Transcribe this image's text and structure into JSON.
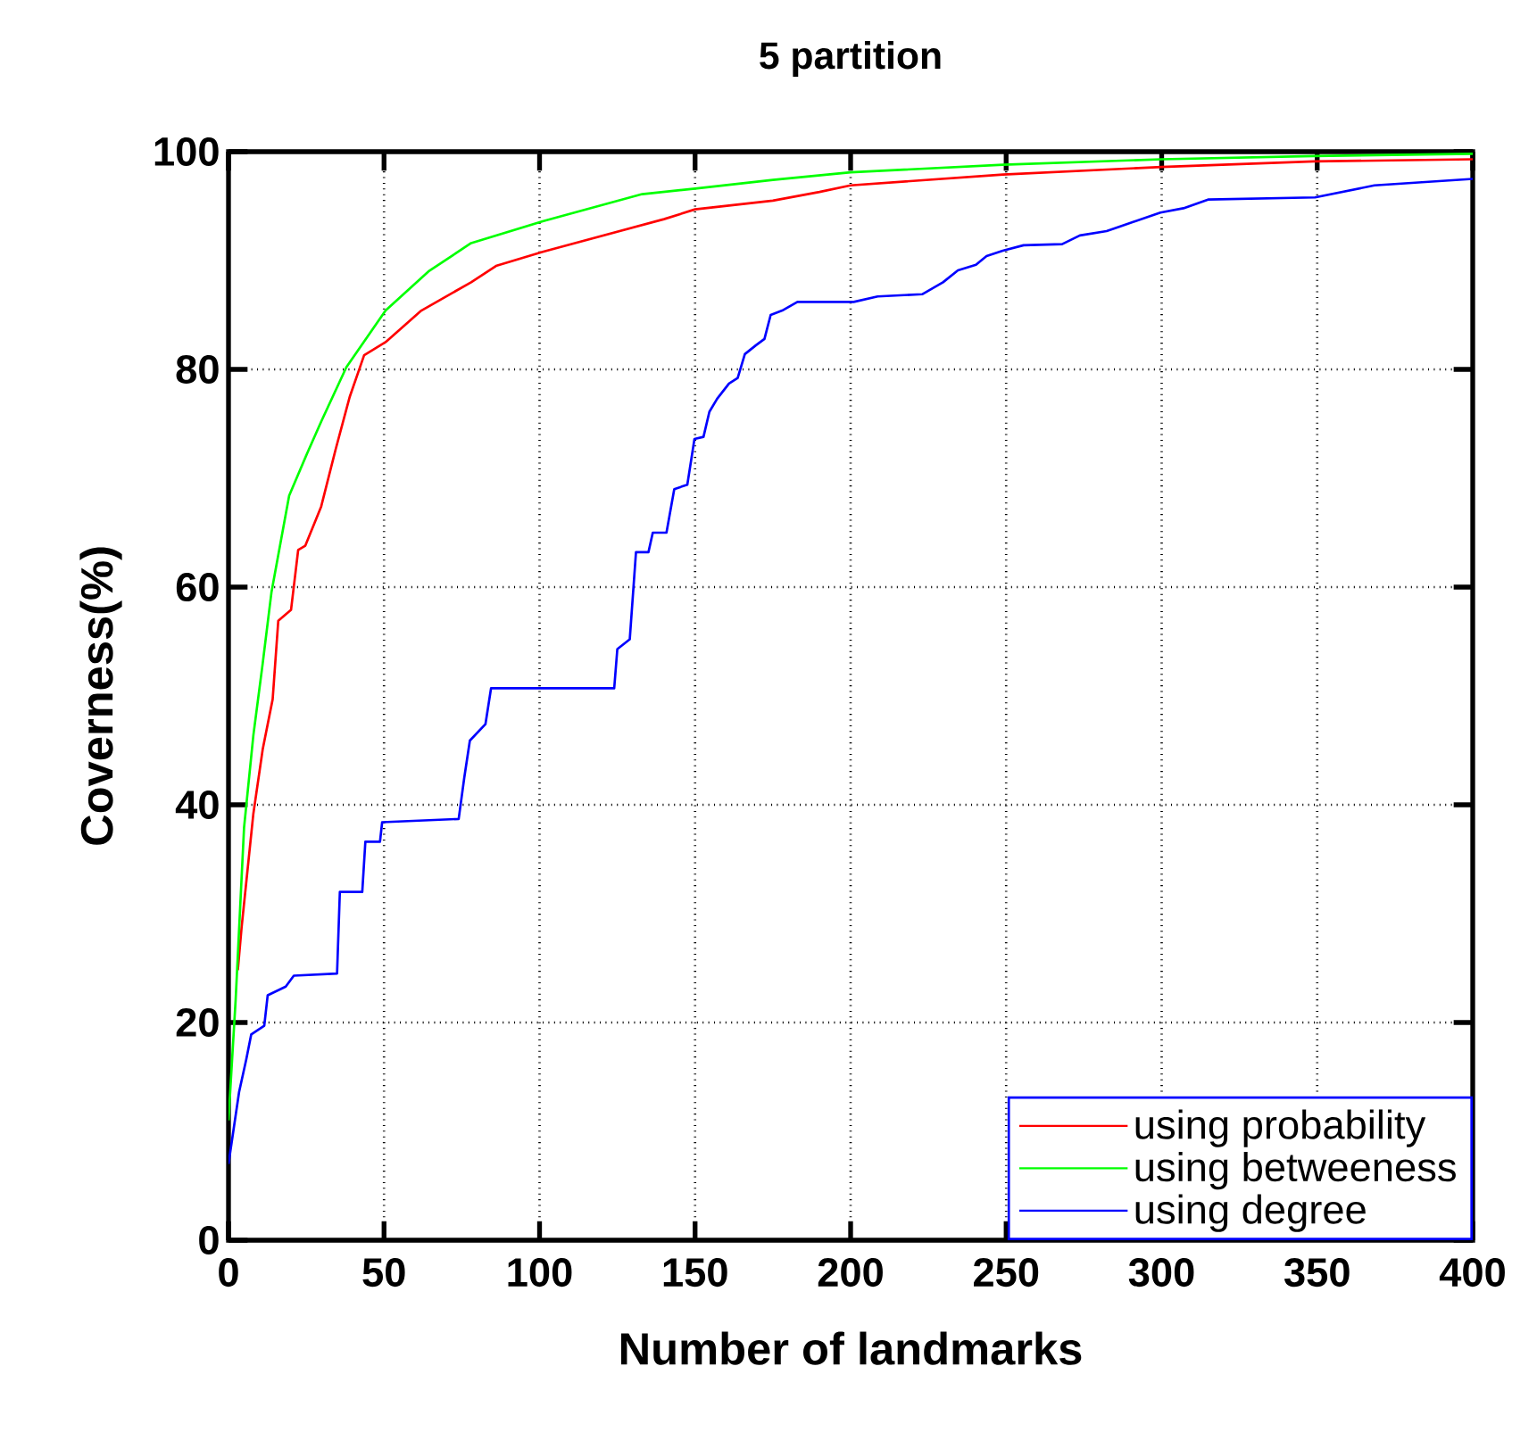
{
  "chart_data": {
    "type": "line",
    "title": "5 partition",
    "xlabel": "Number of landmarks",
    "ylabel": "Coverness(%)",
    "xlim": [
      0,
      400
    ],
    "ylim": [
      0,
      100
    ],
    "xticks": [
      0,
      50,
      100,
      150,
      200,
      250,
      300,
      350,
      400
    ],
    "yticks": [
      0,
      20,
      40,
      60,
      80,
      100
    ],
    "grid": true,
    "legend": "bottom right",
    "marker": "none",
    "line_style": "solid",
    "series": [
      {
        "name": "using probability",
        "color": "#ff0000",
        "x": [
          3,
          4.2,
          8,
          11,
          14.2,
          16,
          20.1,
          22.4,
          24.7,
          29.8,
          34.4,
          39,
          43.6,
          50.5,
          62,
          78,
          86,
          101,
          140,
          150,
          175,
          190,
          200,
          249,
          300,
          349,
          400
        ],
        "values": [
          24.8,
          28.7,
          39.2,
          45.1,
          49.7,
          56.9,
          57.9,
          63.4,
          63.8,
          67.4,
          72.6,
          77.5,
          81.3,
          82.5,
          85.4,
          88,
          89.5,
          90.8,
          93.8,
          94.7,
          95.5,
          96.3,
          96.9,
          97.9,
          98.6,
          99.1,
          99.3
        ]
      },
      {
        "name": "using betweeness",
        "color": "#00ff00",
        "x": [
          0,
          2.3,
          5,
          8,
          11,
          13.8,
          19.5,
          25.3,
          29.8,
          37.9,
          50.5,
          64.3,
          78,
          101,
          133,
          150,
          175,
          200,
          249,
          300,
          349,
          400
        ],
        "values": [
          11,
          22.1,
          37.9,
          46.4,
          53,
          59.5,
          68.4,
          72.3,
          75.2,
          80.2,
          85.4,
          89,
          91.6,
          93.6,
          96.1,
          96.6,
          97.4,
          98.1,
          98.8,
          99.3,
          99.6,
          99.8
        ]
      },
      {
        "name": "using degree",
        "color": "#0000ff",
        "x": [
          0,
          3.4,
          5.7,
          7.3,
          11.5,
          12.6,
          18.4,
          21,
          34.9,
          35.8,
          43,
          44,
          48.7,
          49.4,
          74,
          75.8,
          77.6,
          82.6,
          84.4,
          124,
          125,
          129,
          131,
          135,
          136.4,
          140.8,
          143.3,
          147.5,
          149.8,
          152.7,
          154.6,
          157.1,
          160.9,
          163.7,
          166,
          169.5,
          172.3,
          174.3,
          178,
          182.9,
          201,
          208.7,
          223,
          229.7,
          234.5,
          240.3,
          243.7,
          248.9,
          255.6,
          268,
          273.7,
          282.3,
          299.6,
          307,
          314.9,
          349.3,
          368.4,
          400
        ],
        "values": [
          7,
          13.6,
          16.6,
          18.9,
          19.7,
          22.5,
          23.3,
          24.3,
          24.5,
          32,
          32,
          36.6,
          36.6,
          38.4,
          38.7,
          42.5,
          45.9,
          47.4,
          50.7,
          50.7,
          54.3,
          55.2,
          63.2,
          63.2,
          65,
          65,
          69,
          69.4,
          73.6,
          73.8,
          76.1,
          77.3,
          78.7,
          79.2,
          81.4,
          82.2,
          82.8,
          85,
          85.4,
          86.2,
          86.2,
          86.7,
          86.9,
          88,
          89.1,
          89.6,
          90.4,
          90.9,
          91.4,
          91.5,
          92.3,
          92.7,
          94.4,
          94.8,
          95.6,
          95.8,
          96.9,
          97.5
        ]
      }
    ]
  }
}
